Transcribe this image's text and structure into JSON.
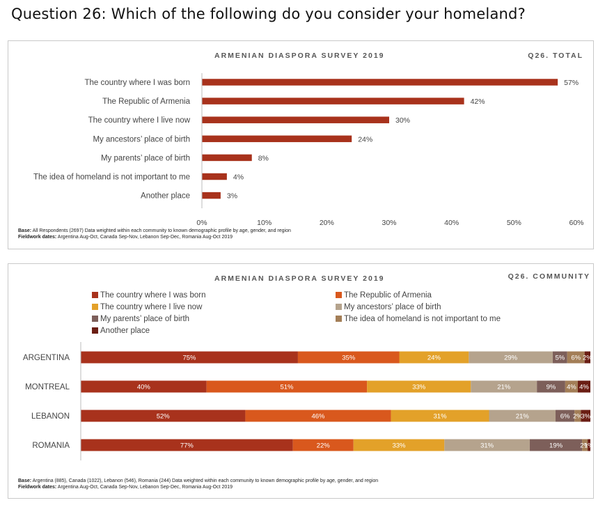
{
  "page": {
    "title": "Question 26: Which of the following do you consider your homeland?"
  },
  "panel1": {
    "survey_title": "ARMENIAN DIASPORA SURVEY 2019",
    "code": "Q26. TOTAL",
    "footnote_base_label": "Base:",
    "footnote_base": "All Respondents (2697) Data weighted within each community to known demographic profile by age, gender, and region",
    "footnote_dates_label": "Fieldwork dates:",
    "footnote_dates": "Argentina Aug-Oct, Canada Sep-Nov, Lebanon Sep-Dec, Romania Aug-Oct 2019"
  },
  "panel2": {
    "survey_title": "ARMENIAN DIASPORA SURVEY 2019",
    "code": "Q26. COMMUNITY",
    "footnote_base_label": "Base:",
    "footnote_base": "Argentina (885), Canada (1022), Lebanon (546), Romania (244) Data weighted within each community to known demographic profile by age, gender, and region",
    "footnote_dates_label": "Fieldwork dates:",
    "footnote_dates": "Argentina Aug-Oct, Canada Sep-Nov, Lebanon Sep-Dec, Romania Aug-Oct 2019"
  },
  "chart_data": [
    {
      "type": "bar",
      "orientation": "horizontal",
      "title": "ARMENIAN DIASPORA SURVEY 2019",
      "categories": [
        "The country where I was born",
        "The Republic of Armenia",
        "The country where I live now",
        "My ancestors’ place of birth",
        "My parents’ place of birth",
        "The idea of homeland is not important to me",
        "Another place"
      ],
      "values": [
        57,
        42,
        30,
        24,
        8,
        4,
        3
      ],
      "value_labels": [
        "57%",
        "42%",
        "30%",
        "24%",
        "8%",
        "4%",
        "3%"
      ],
      "xlim": [
        0,
        60
      ],
      "xticks": [
        "0%",
        "10%",
        "20%",
        "30%",
        "40%",
        "50%",
        "60%"
      ],
      "bar_color": "#a8321c",
      "grid": false
    },
    {
      "type": "bar",
      "orientation": "horizontal",
      "stacked": true,
      "title": "ARMENIAN DIASPORA SURVEY 2019",
      "categories": [
        "ARGENTINA",
        "MONTREAL",
        "LEBANON",
        "ROMANIA"
      ],
      "legend_position": "top",
      "series": [
        {
          "name": "The country where I was born",
          "color": "#a8321c",
          "values": [
            75,
            40,
            52,
            77
          ]
        },
        {
          "name": "The Republic of Armenia",
          "color": "#d9581d",
          "values": [
            35,
            51,
            46,
            22
          ]
        },
        {
          "name": "The country where I live now",
          "color": "#e3a129",
          "values": [
            24,
            33,
            31,
            33
          ]
        },
        {
          "name": "My ancestors’ place of birth",
          "color": "#b5a38d",
          "values": [
            29,
            21,
            21,
            31
          ]
        },
        {
          "name": "My parents’ place of birth",
          "color": "#7d5f5a",
          "values": [
            5,
            9,
            6,
            19
          ]
        },
        {
          "name": "The idea of homeland is not important to me",
          "color": "#a37e57",
          "values": [
            6,
            4,
            2,
            2
          ]
        },
        {
          "name": "Another place",
          "color": "#6b1e14",
          "values": [
            2,
            4,
            3,
            1
          ]
        }
      ],
      "value_labels": [
        [
          "75%",
          "35%",
          "24%",
          "29%",
          "5%",
          "6%",
          "2%"
        ],
        [
          "40%",
          "51%",
          "33%",
          "21%",
          "9%",
          "4%",
          "4%"
        ],
        [
          "52%",
          "46%",
          "31%",
          "21%",
          "6%",
          "2%",
          "3%"
        ],
        [
          "77%",
          "22%",
          "33%",
          "31%",
          "19%",
          "2%",
          "1%"
        ]
      ],
      "grid": false
    }
  ]
}
